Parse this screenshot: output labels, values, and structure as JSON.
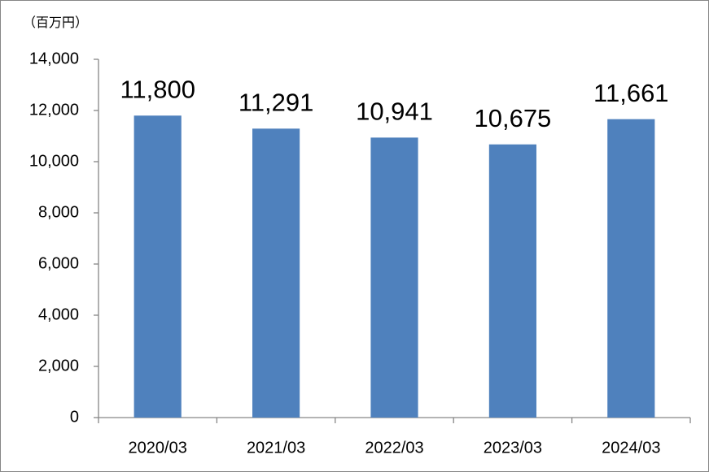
{
  "chart_data": {
    "type": "bar",
    "unit_label": "（百万円）",
    "categories": [
      "2020/03",
      "2021/03",
      "2022/03",
      "2023/03",
      "2024/03"
    ],
    "values": [
      11800,
      11291,
      10941,
      10675,
      11661
    ],
    "value_labels": [
      "11,800",
      "11,291",
      "10,941",
      "10,675",
      "11,661"
    ],
    "color": "#4f81bd",
    "ylim": [
      0,
      14000
    ],
    "yticks": [
      0,
      {
        "value": 2000,
        "label": "2,000"
      },
      {
        "value": 4000,
        "label": "4,000"
      },
      {
        "value": 6000,
        "label": "6,000"
      },
      {
        "value": 8000,
        "label": "8,000"
      },
      {
        "value": 10000,
        "label": "10,000"
      },
      {
        "value": 12000,
        "label": "12,000"
      },
      {
        "value": 14000,
        "label": "14,000"
      }
    ],
    "grid": false
  }
}
